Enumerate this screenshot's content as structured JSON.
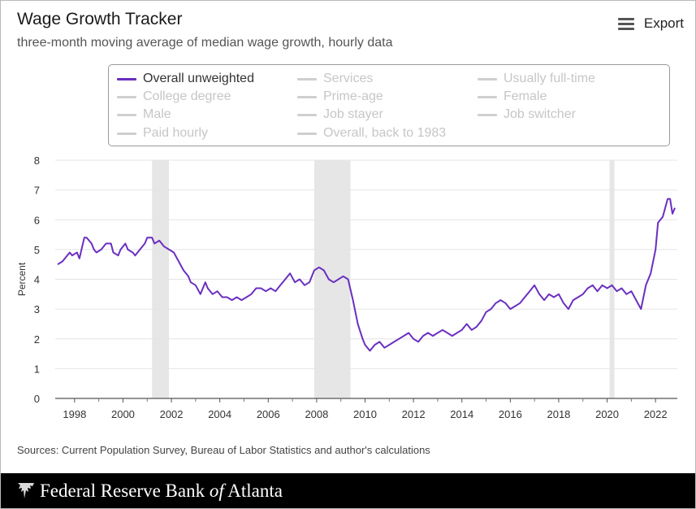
{
  "header": {
    "title": "Wage Growth Tracker",
    "subtitle": "three-month moving average of median wage growth, hourly data",
    "export_label": "Export"
  },
  "legend": {
    "items": [
      {
        "label": "Overall unweighted",
        "active": true
      },
      {
        "label": "Services",
        "active": false
      },
      {
        "label": "Usually full-time",
        "active": false
      },
      {
        "label": "College degree",
        "active": false
      },
      {
        "label": "Prime-age",
        "active": false
      },
      {
        "label": "Female",
        "active": false
      },
      {
        "label": "Male",
        "active": false
      },
      {
        "label": "Job stayer",
        "active": false
      },
      {
        "label": "Job switcher",
        "active": false
      },
      {
        "label": "Paid hourly",
        "active": false
      },
      {
        "label": "Overall, back to 1983",
        "active": false
      }
    ]
  },
  "chart_data": {
    "type": "line",
    "title": "Wage Growth Tracker",
    "subtitle": "three-month moving average of median wage growth, hourly data",
    "xlabel": "",
    "ylabel": "Percent",
    "xlim": [
      1997.2,
      2022.9
    ],
    "ylim": [
      0,
      8
    ],
    "x_ticks": [
      "1998",
      "2000",
      "2002",
      "2004",
      "2006",
      "2008",
      "2010",
      "2012",
      "2014",
      "2016",
      "2018",
      "2020",
      "2022"
    ],
    "y_ticks": [
      "0",
      "1",
      "2",
      "3",
      "4",
      "5",
      "6",
      "7",
      "8"
    ],
    "grid": true,
    "line_color": "#6a2fc0",
    "recession_color": "#e6e6e6",
    "recessions": [
      [
        2001.2,
        2001.9
      ],
      [
        2007.9,
        2009.4
      ],
      [
        2020.1,
        2020.3
      ]
    ],
    "series": [
      {
        "name": "Overall unweighted",
        "points": [
          [
            1997.3,
            4.5
          ],
          [
            1997.5,
            4.6
          ],
          [
            1997.8,
            4.9
          ],
          [
            1997.9,
            4.8
          ],
          [
            1998.1,
            4.9
          ],
          [
            1998.2,
            4.7
          ],
          [
            1998.4,
            5.4
          ],
          [
            1998.5,
            5.4
          ],
          [
            1998.7,
            5.2
          ],
          [
            1998.8,
            5.0
          ],
          [
            1998.9,
            4.9
          ],
          [
            1999.1,
            5.0
          ],
          [
            1999.3,
            5.2
          ],
          [
            1999.5,
            5.2
          ],
          [
            1999.6,
            4.9
          ],
          [
            1999.8,
            4.8
          ],
          [
            1999.9,
            5.0
          ],
          [
            2000.1,
            5.2
          ],
          [
            2000.2,
            5.0
          ],
          [
            2000.4,
            4.9
          ],
          [
            2000.5,
            4.8
          ],
          [
            2000.7,
            5.0
          ],
          [
            2000.9,
            5.2
          ],
          [
            2001.0,
            5.4
          ],
          [
            2001.2,
            5.4
          ],
          [
            2001.3,
            5.2
          ],
          [
            2001.5,
            5.3
          ],
          [
            2001.7,
            5.1
          ],
          [
            2001.9,
            5.0
          ],
          [
            2002.1,
            4.9
          ],
          [
            2002.3,
            4.6
          ],
          [
            2002.5,
            4.3
          ],
          [
            2002.7,
            4.1
          ],
          [
            2002.8,
            3.9
          ],
          [
            2003.0,
            3.8
          ],
          [
            2003.2,
            3.5
          ],
          [
            2003.4,
            3.9
          ],
          [
            2003.5,
            3.7
          ],
          [
            2003.7,
            3.5
          ],
          [
            2003.9,
            3.6
          ],
          [
            2004.1,
            3.4
          ],
          [
            2004.3,
            3.4
          ],
          [
            2004.5,
            3.3
          ],
          [
            2004.7,
            3.4
          ],
          [
            2004.9,
            3.3
          ],
          [
            2005.1,
            3.4
          ],
          [
            2005.3,
            3.5
          ],
          [
            2005.5,
            3.7
          ],
          [
            2005.7,
            3.7
          ],
          [
            2005.9,
            3.6
          ],
          [
            2006.1,
            3.7
          ],
          [
            2006.3,
            3.6
          ],
          [
            2006.5,
            3.8
          ],
          [
            2006.7,
            4.0
          ],
          [
            2006.9,
            4.2
          ],
          [
            2007.1,
            3.9
          ],
          [
            2007.3,
            4.0
          ],
          [
            2007.5,
            3.8
          ],
          [
            2007.7,
            3.9
          ],
          [
            2007.9,
            4.3
          ],
          [
            2008.1,
            4.4
          ],
          [
            2008.3,
            4.3
          ],
          [
            2008.5,
            4.0
          ],
          [
            2008.7,
            3.9
          ],
          [
            2008.9,
            4.0
          ],
          [
            2009.1,
            4.1
          ],
          [
            2009.3,
            4.0
          ],
          [
            2009.5,
            3.3
          ],
          [
            2009.7,
            2.5
          ],
          [
            2009.9,
            2.0
          ],
          [
            2010.0,
            1.8
          ],
          [
            2010.2,
            1.6
          ],
          [
            2010.4,
            1.8
          ],
          [
            2010.6,
            1.9
          ],
          [
            2010.8,
            1.7
          ],
          [
            2011.0,
            1.8
          ],
          [
            2011.2,
            1.9
          ],
          [
            2011.4,
            2.0
          ],
          [
            2011.6,
            2.1
          ],
          [
            2011.8,
            2.2
          ],
          [
            2012.0,
            2.0
          ],
          [
            2012.2,
            1.9
          ],
          [
            2012.4,
            2.1
          ],
          [
            2012.6,
            2.2
          ],
          [
            2012.8,
            2.1
          ],
          [
            2013.0,
            2.2
          ],
          [
            2013.2,
            2.3
          ],
          [
            2013.4,
            2.2
          ],
          [
            2013.6,
            2.1
          ],
          [
            2013.8,
            2.2
          ],
          [
            2014.0,
            2.3
          ],
          [
            2014.2,
            2.5
          ],
          [
            2014.4,
            2.3
          ],
          [
            2014.6,
            2.4
          ],
          [
            2014.8,
            2.6
          ],
          [
            2015.0,
            2.9
          ],
          [
            2015.2,
            3.0
          ],
          [
            2015.4,
            3.2
          ],
          [
            2015.6,
            3.3
          ],
          [
            2015.8,
            3.2
          ],
          [
            2016.0,
            3.0
          ],
          [
            2016.2,
            3.1
          ],
          [
            2016.4,
            3.2
          ],
          [
            2016.6,
            3.4
          ],
          [
            2016.8,
            3.6
          ],
          [
            2017.0,
            3.8
          ],
          [
            2017.2,
            3.5
          ],
          [
            2017.4,
            3.3
          ],
          [
            2017.6,
            3.5
          ],
          [
            2017.8,
            3.4
          ],
          [
            2018.0,
            3.5
          ],
          [
            2018.2,
            3.2
          ],
          [
            2018.4,
            3.0
          ],
          [
            2018.6,
            3.3
          ],
          [
            2018.8,
            3.4
          ],
          [
            2019.0,
            3.5
          ],
          [
            2019.2,
            3.7
          ],
          [
            2019.4,
            3.8
          ],
          [
            2019.6,
            3.6
          ],
          [
            2019.8,
            3.8
          ],
          [
            2020.0,
            3.7
          ],
          [
            2020.2,
            3.8
          ],
          [
            2020.4,
            3.6
          ],
          [
            2020.6,
            3.7
          ],
          [
            2020.8,
            3.5
          ],
          [
            2021.0,
            3.6
          ],
          [
            2021.2,
            3.3
          ],
          [
            2021.4,
            3.0
          ],
          [
            2021.6,
            3.8
          ],
          [
            2021.8,
            4.2
          ],
          [
            2022.0,
            5.0
          ],
          [
            2022.1,
            5.9
          ],
          [
            2022.3,
            6.1
          ],
          [
            2022.5,
            6.7
          ],
          [
            2022.6,
            6.7
          ],
          [
            2022.7,
            6.2
          ],
          [
            2022.8,
            6.4
          ]
        ]
      }
    ]
  },
  "source": "Sources: Current Population Survey, Bureau of Labor Statistics and author's calculations",
  "footer": {
    "name_prefix": "Federal Reserve Bank",
    "name_of": "of",
    "name_suffix": "Atlanta"
  }
}
